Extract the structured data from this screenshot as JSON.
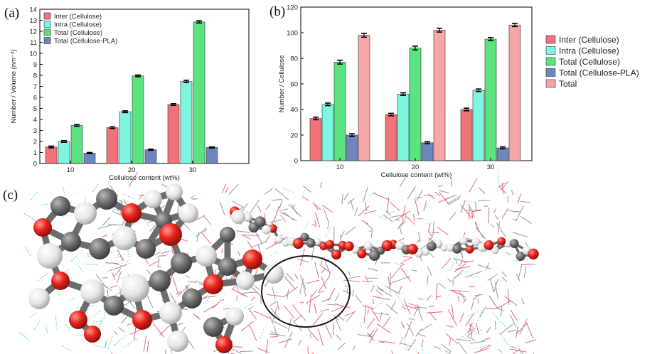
{
  "panel_labels": {
    "a": "(a)",
    "b": "(b)",
    "c": "(c)"
  },
  "colors": {
    "inter": "#f07378",
    "intra": "#7ef5de",
    "total_cellulose": "#5ae37e",
    "total_pla": "#6e86bd",
    "total": "#f5a6a6",
    "molecule_carbon": "#6c6c6c",
    "molecule_oxygen": "#e8241d",
    "molecule_hydrogen": "#ececec",
    "hbond": "#63d4ec",
    "line_red": "#e06a75",
    "line_gray": "#9a9a9a"
  },
  "chart_data": [
    {
      "id": "a",
      "type": "bar",
      "categories": [
        "10",
        "20",
        "30"
      ],
      "xlabel": "Cellulose content (wt%)",
      "ylabel": "Number / Volume (nm⁻³)",
      "ylim": [
        0,
        14
      ],
      "yticks": [
        0,
        1,
        2,
        3,
        4,
        5,
        6,
        7,
        8,
        9,
        10,
        11,
        12,
        13,
        14
      ],
      "legend_position": "top-left",
      "error_bars": true,
      "series": [
        {
          "name": "Inter (Cellulose)",
          "color_key": "inter",
          "values": [
            1.5,
            3.25,
            5.35
          ],
          "errors": [
            0.08,
            0.08,
            0.08
          ]
        },
        {
          "name": "Intra (Cellulose)",
          "color_key": "intra",
          "values": [
            2.0,
            4.7,
            7.45
          ],
          "errors": [
            0.08,
            0.08,
            0.1
          ]
        },
        {
          "name": "Total (Cellulose)",
          "color_key": "total_cellulose",
          "values": [
            3.45,
            7.95,
            12.85
          ],
          "errors": [
            0.08,
            0.08,
            0.1
          ]
        },
        {
          "name": "Total (Cellulose-PLA)",
          "color_key": "total_pla",
          "values": [
            0.95,
            1.25,
            1.45
          ],
          "errors": [
            0.05,
            0.05,
            0.05
          ]
        }
      ]
    },
    {
      "id": "b",
      "type": "bar",
      "categories": [
        "10",
        "20",
        "30"
      ],
      "xlabel": "Cellulose content (wt%)",
      "ylabel": "Number / Cellulose",
      "ylim": [
        0,
        120
      ],
      "yticks": [
        0,
        20,
        40,
        60,
        80,
        100,
        120
      ],
      "legend_position": "right",
      "error_bars": true,
      "series": [
        {
          "name": "Inter (Cellulose)",
          "color_key": "inter",
          "values": [
            33,
            36,
            40
          ],
          "errors": [
            1,
            1,
            1
          ]
        },
        {
          "name": "Intra (Cellulose)",
          "color_key": "intra",
          "values": [
            44,
            52,
            55
          ],
          "errors": [
            1,
            1,
            1
          ]
        },
        {
          "name": "Total (Cellulose)",
          "color_key": "total_cellulose",
          "values": [
            77,
            88,
            95
          ],
          "errors": [
            1.5,
            1.5,
            1.2
          ]
        },
        {
          "name": "Total (Cellulose-PLA)",
          "color_key": "total_pla",
          "values": [
            20,
            14,
            10
          ],
          "errors": [
            1,
            0.8,
            0.8
          ]
        },
        {
          "name": "Total",
          "color_key": "total",
          "values": [
            98,
            102,
            106
          ],
          "errors": [
            1.5,
            1.5,
            1.2
          ]
        }
      ]
    }
  ]
}
